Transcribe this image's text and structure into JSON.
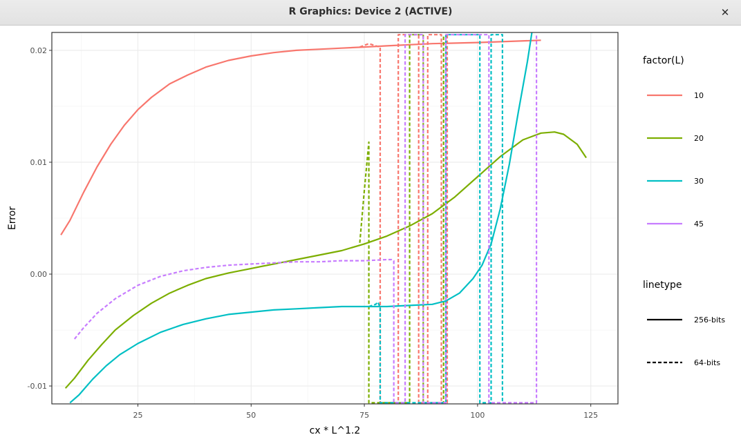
{
  "window": {
    "title": "R Graphics: Device 2 (ACTIVE)",
    "close_label": "✕"
  },
  "chart_data": {
    "type": "line",
    "xlabel": "cx * L^1.2",
    "ylabel": "Error",
    "xlim": [
      6,
      131
    ],
    "ylim": [
      -0.0116,
      0.0216
    ],
    "x_ticks": [
      25,
      50,
      75,
      100,
      125
    ],
    "x_tick_labels": [
      "25",
      "50",
      "75",
      "100",
      "125"
    ],
    "y_ticks": [
      -0.01,
      0.0,
      0.01,
      0.02
    ],
    "y_tick_labels": [
      "-0.01",
      "0.00",
      "0.01",
      "0.02"
    ],
    "grid": true,
    "legend_position": "right",
    "colors": {
      "10": "#F8766D",
      "20": "#7CAE00",
      "30": "#00BFC4",
      "45": "#C77CFF"
    },
    "legend": {
      "color_title": "factor(L)",
      "color_entries": [
        "10",
        "20",
        "30",
        "45"
      ],
      "linetype_title": "linetype",
      "linetype_entries": [
        {
          "label": "256-bits",
          "dash": "solid"
        },
        {
          "label": "64-bits",
          "dash": "dashed"
        }
      ]
    },
    "series": [
      {
        "L": "10",
        "linetype": "256-bits",
        "x": [
          8,
          10,
          13,
          16,
          19,
          22,
          25,
          28,
          32,
          36,
          40,
          45,
          50,
          55,
          60,
          65,
          70,
          75,
          80,
          90,
          100,
          114
        ],
        "y": [
          0.0035,
          0.0048,
          0.0073,
          0.0096,
          0.0116,
          0.0133,
          0.0147,
          0.0158,
          0.017,
          0.0178,
          0.0185,
          0.0191,
          0.0195,
          0.0198,
          0.02,
          0.0201,
          0.0202,
          0.0203,
          0.0204,
          0.0206,
          0.0207,
          0.0209
        ]
      },
      {
        "L": "10",
        "linetype": "64-bits",
        "x": [
          74,
          76,
          77.5,
          78.5,
          78.5,
          82.5,
          82.5,
          87,
          87,
          89,
          89,
          92,
          92,
          93.3,
          93.3
        ],
        "y": [
          0.0203,
          0.0206,
          0.0204,
          0.0203,
          -0.0115,
          -0.0115,
          0.0214,
          0.0214,
          -0.0115,
          -0.0115,
          0.0214,
          0.0214,
          -0.0115,
          -0.0115,
          0.0214
        ]
      },
      {
        "L": "20",
        "linetype": "256-bits",
        "x": [
          9,
          11,
          14,
          17,
          20,
          24,
          28,
          32,
          36,
          40,
          45,
          50,
          55,
          60,
          65,
          70,
          75,
          80,
          85,
          90,
          95,
          100,
          105,
          110,
          114,
          117,
          119,
          122,
          124
        ],
        "y": [
          -0.0102,
          -0.0093,
          -0.0077,
          -0.0063,
          -0.005,
          -0.0037,
          -0.0026,
          -0.0017,
          -0.001,
          -0.0004,
          0.0001,
          0.0005,
          0.0009,
          0.0013,
          0.0017,
          0.0021,
          0.0027,
          0.0034,
          0.0043,
          0.0054,
          0.0069,
          0.0087,
          0.0105,
          0.012,
          0.0126,
          0.0127,
          0.0125,
          0.0116,
          0.0104
        ]
      },
      {
        "L": "20",
        "linetype": "64-bits",
        "x": [
          74,
          75,
          76,
          76,
          85,
          85,
          88,
          88,
          92.5,
          92.5
        ],
        "y": [
          0.0028,
          0.0075,
          0.0118,
          -0.0115,
          -0.0115,
          0.0214,
          0.0214,
          -0.0115,
          -0.0115,
          0.0214
        ]
      },
      {
        "L": "30",
        "linetype": "256-bits",
        "x": [
          10,
          12,
          15,
          18,
          21,
          25,
          30,
          35,
          40,
          45,
          50,
          55,
          60,
          65,
          70,
          75,
          80,
          85,
          90,
          93,
          96,
          99,
          101,
          103,
          105,
          107,
          109,
          111,
          112
        ],
        "y": [
          -0.0115,
          -0.0108,
          -0.0094,
          -0.0082,
          -0.0072,
          -0.0062,
          -0.0052,
          -0.0045,
          -0.004,
          -0.0036,
          -0.0034,
          -0.0032,
          -0.0031,
          -0.003,
          -0.0029,
          -0.0029,
          -0.0029,
          -0.0028,
          -0.0027,
          -0.0024,
          -0.0017,
          -0.0004,
          0.0008,
          0.0027,
          0.0058,
          0.0098,
          0.0145,
          0.019,
          0.0216
        ]
      },
      {
        "L": "30",
        "linetype": "64-bits",
        "x": [
          76,
          77.5,
          78,
          78.5,
          78.5,
          93,
          93,
          100.5,
          100.5,
          103,
          103,
          105.5,
          105.5
        ],
        "y": [
          -0.0029,
          -0.0027,
          -0.0025,
          -0.003,
          -0.0115,
          -0.0115,
          0.0214,
          0.0214,
          -0.0115,
          -0.0115,
          0.0214,
          0.0214,
          -0.0115
        ]
      },
      {
        "L": "45",
        "linetype": "64-bits",
        "x": [
          11,
          13,
          16,
          20,
          25,
          30,
          35,
          40,
          45,
          50,
          55,
          60,
          65,
          70,
          75,
          80,
          81,
          81.5,
          81.5,
          84,
          84,
          88,
          88,
          93,
          93,
          102.5,
          102.5,
          113,
          113
        ],
        "y": [
          -0.0058,
          -0.0048,
          -0.0035,
          -0.0022,
          -0.001,
          -0.0002,
          0.0003,
          0.0006,
          0.0008,
          0.0009,
          0.001,
          0.0011,
          0.0011,
          0.0012,
          0.0012,
          0.0013,
          0.0013,
          0.0012,
          -0.0115,
          -0.0115,
          0.0214,
          0.0214,
          -0.0115,
          -0.0115,
          0.0214,
          0.0214,
          -0.0115,
          -0.0115,
          0.0214
        ]
      }
    ]
  }
}
